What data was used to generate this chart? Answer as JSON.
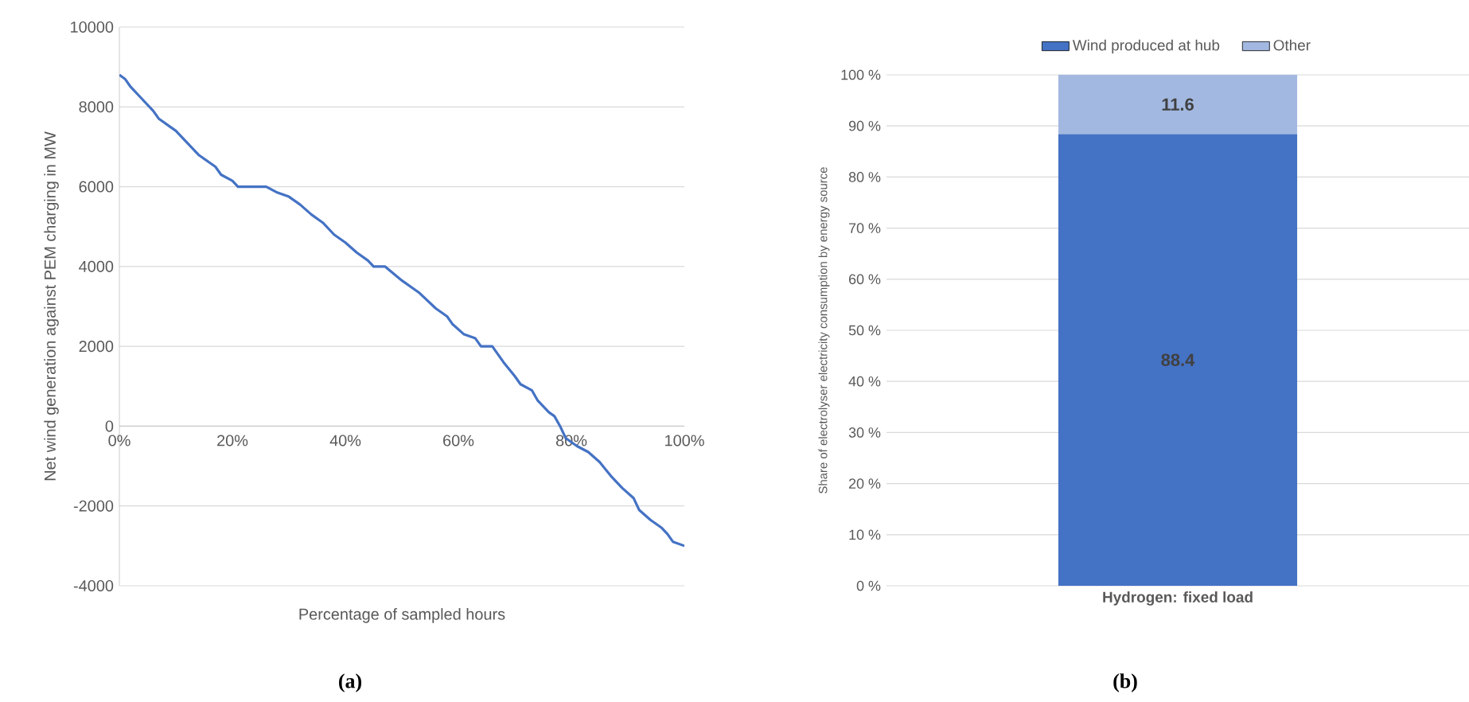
{
  "chart_data": [
    {
      "type": "line",
      "xlabel": "Percentage of sampled hours",
      "ylabel": "Net wind generation against PEM charging in MW",
      "annotations": [
        "(a)"
      ],
      "xlim": [
        0,
        100
      ],
      "ylim": [
        -4000,
        10000
      ],
      "xticks": [
        {
          "value": 0,
          "label": "0%"
        },
        {
          "value": 20,
          "label": "20%"
        },
        {
          "value": 40,
          "label": "40%"
        },
        {
          "value": 60,
          "label": "60%"
        },
        {
          "value": 80,
          "label": "80%"
        },
        {
          "value": 100,
          "label": "100%"
        }
      ],
      "yticks": [
        -4000,
        -2000,
        0,
        2000,
        4000,
        6000,
        8000,
        10000
      ],
      "grid": "y",
      "marker": "none",
      "line_style": "solid",
      "x": [
        0,
        1,
        2,
        4,
        6,
        7,
        9,
        10,
        12,
        14,
        16,
        17,
        18,
        20,
        21,
        26,
        28,
        30,
        32,
        34,
        36,
        38,
        40,
        42,
        44,
        45,
        47,
        50,
        53,
        56,
        58,
        59,
        61,
        63,
        64,
        66,
        68,
        70,
        71,
        73,
        74,
        76,
        77,
        78,
        79,
        81,
        83,
        85,
        87,
        89,
        91,
        92,
        94,
        96,
        97,
        98,
        100
      ],
      "series": [
        {
          "color": "#4472c4",
          "values": [
            8800,
            8700,
            8500,
            8200,
            7900,
            7700,
            7500,
            7400,
            7100,
            6800,
            6600,
            6500,
            6300,
            6150,
            6000,
            6000,
            5850,
            5750,
            5550,
            5300,
            5100,
            4800,
            4600,
            4350,
            4150,
            4000,
            4000,
            3650,
            3350,
            2950,
            2750,
            2550,
            2300,
            2200,
            2000,
            2000,
            1600,
            1250,
            1050,
            900,
            650,
            350,
            250,
            0,
            -300,
            -500,
            -650,
            -900,
            -1250,
            -1550,
            -1800,
            -2100,
            -2350,
            -2550,
            -2700,
            -2900,
            -3000
          ]
        }
      ]
    },
    {
      "type": "bar",
      "stacked": true,
      "ylabel": "Share of electrolyser electricity consumption by energy source",
      "annotations": [
        "(b)"
      ],
      "categories": [
        "Hydrogen: fixed load"
      ],
      "ylim": [
        0,
        100
      ],
      "yticks": [
        {
          "value": 0,
          "label": "0 %"
        },
        {
          "value": 10,
          "label": "10 %"
        },
        {
          "value": 20,
          "label": "20 %"
        },
        {
          "value": 30,
          "label": "30 %"
        },
        {
          "value": 40,
          "label": "40 %"
        },
        {
          "value": 50,
          "label": "50 %"
        },
        {
          "value": 60,
          "label": "60 %"
        },
        {
          "value": 70,
          "label": "70 %"
        },
        {
          "value": 80,
          "label": "80 %"
        },
        {
          "value": 90,
          "label": "90 %"
        },
        {
          "value": 100,
          "label": "100 %"
        }
      ],
      "grid": "y",
      "legend": "top",
      "data_labels": true,
      "series": [
        {
          "name": "Wind produced at hub",
          "color": "#4472c4",
          "values": [
            88.4
          ]
        },
        {
          "name": "Other",
          "color": "#a3b8e0",
          "values": [
            11.6
          ]
        }
      ]
    }
  ]
}
